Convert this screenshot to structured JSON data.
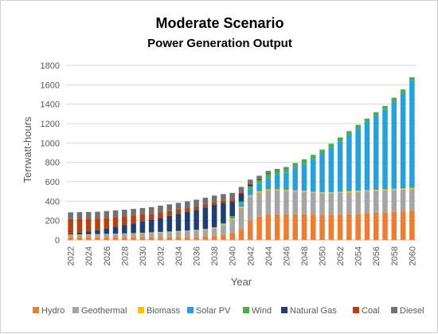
{
  "chart_data": {
    "type": "bar",
    "stacked": true,
    "title": "Moderate Scenario",
    "subtitle": "Power Generation Output",
    "xlabel": "Year",
    "ylabel": "Terrwatt-hours",
    "ylim": [
      0,
      1800
    ],
    "yticks": [
      0,
      200,
      400,
      600,
      800,
      1000,
      1200,
      1400,
      1600,
      1800
    ],
    "grid": true,
    "legend_position": "bottom",
    "categories": [
      2022,
      2023,
      2024,
      2025,
      2026,
      2027,
      2028,
      2029,
      2030,
      2031,
      2032,
      2033,
      2034,
      2035,
      2036,
      2037,
      2038,
      2039,
      2040,
      2041,
      2042,
      2043,
      2044,
      2045,
      2046,
      2047,
      2048,
      2049,
      2050,
      2051,
      2052,
      2053,
      2054,
      2055,
      2056,
      2057,
      2058,
      2059,
      2060
    ],
    "xtick_labels": [
      "2022",
      "2024",
      "2026",
      "2028",
      "2030",
      "2032",
      "2034",
      "2036",
      "2038",
      "2040",
      "2042",
      "2044",
      "2046",
      "2048",
      "2050",
      "2052",
      "2054",
      "2056",
      "2058",
      "2060"
    ],
    "series": [
      {
        "name": "Hydro",
        "color": "#ED7D31",
        "values": [
          30,
          30,
          30,
          30,
          30,
          30,
          30,
          30,
          30,
          30,
          30,
          30,
          30,
          30,
          30,
          35,
          40,
          55,
          70,
          110,
          200,
          240,
          260,
          265,
          265,
          265,
          265,
          260,
          255,
          255,
          260,
          265,
          270,
          275,
          280,
          285,
          290,
          295,
          300
        ]
      },
      {
        "name": "Geothermal",
        "color": "#A5A5A5",
        "values": [
          20,
          22,
          24,
          26,
          28,
          30,
          32,
          35,
          38,
          42,
          46,
          50,
          55,
          60,
          65,
          70,
          80,
          100,
          140,
          220,
          250,
          250,
          250,
          245,
          240,
          235,
          230,
          225,
          225,
          225,
          225,
          225,
          225,
          225,
          225,
          225,
          225,
          225,
          225
        ]
      },
      {
        "name": "Biomass",
        "color": "#FFC000",
        "values": [
          3,
          3,
          3,
          3,
          3,
          3,
          3,
          3,
          3,
          4,
          4,
          4,
          4,
          4,
          5,
          5,
          6,
          8,
          10,
          12,
          12,
          12,
          12,
          12,
          12,
          12,
          12,
          12,
          12,
          12,
          12,
          12,
          12,
          12,
          12,
          12,
          12,
          12,
          12
        ]
      },
      {
        "name": "Solar PV",
        "color": "#27A1DB",
        "values": [
          0,
          0,
          0,
          0,
          0,
          0,
          0,
          0,
          0,
          0,
          0,
          0,
          0,
          0,
          0,
          0,
          0,
          0,
          10,
          30,
          60,
          80,
          120,
          150,
          180,
          230,
          280,
          340,
          400,
          460,
          520,
          580,
          640,
          700,
          760,
          820,
          900,
          980,
          1100
        ]
      },
      {
        "name": "Wind",
        "color": "#4BAE4B",
        "values": [
          2,
          2,
          2,
          2,
          2,
          2,
          2,
          2,
          3,
          3,
          3,
          3,
          4,
          4,
          5,
          5,
          6,
          10,
          15,
          25,
          30,
          35,
          40,
          40,
          40,
          40,
          40,
          40,
          40,
          40,
          40,
          40,
          40,
          40,
          40,
          40,
          40,
          40,
          40
        ]
      },
      {
        "name": "Natural Gas",
        "color": "#1F3F72",
        "values": [
          10,
          20,
          30,
          40,
          55,
          70,
          85,
          100,
          115,
          130,
          145,
          160,
          175,
          190,
          205,
          220,
          230,
          210,
          150,
          80,
          20,
          10,
          5,
          5,
          5,
          5,
          0,
          0,
          0,
          0,
          0,
          0,
          0,
          0,
          0,
          0,
          0,
          0,
          0
        ]
      },
      {
        "name": "Coal",
        "color": "#B7410E",
        "values": [
          150,
          140,
          130,
          120,
          110,
          100,
          90,
          80,
          70,
          60,
          55,
          50,
          45,
          40,
          35,
          30,
          25,
          20,
          20,
          15,
          10,
          5,
          5,
          0,
          0,
          0,
          0,
          0,
          0,
          0,
          0,
          0,
          0,
          0,
          0,
          0,
          0,
          0,
          0
        ]
      },
      {
        "name": "Diesel",
        "color": "#717171",
        "values": [
          70,
          70,
          70,
          70,
          70,
          70,
          70,
          70,
          70,
          70,
          70,
          70,
          70,
          70,
          70,
          70,
          70,
          70,
          70,
          55,
          40,
          30,
          20,
          15,
          10,
          5,
          5,
          0,
          0,
          0,
          0,
          0,
          0,
          0,
          0,
          0,
          0,
          0,
          0
        ]
      }
    ]
  }
}
